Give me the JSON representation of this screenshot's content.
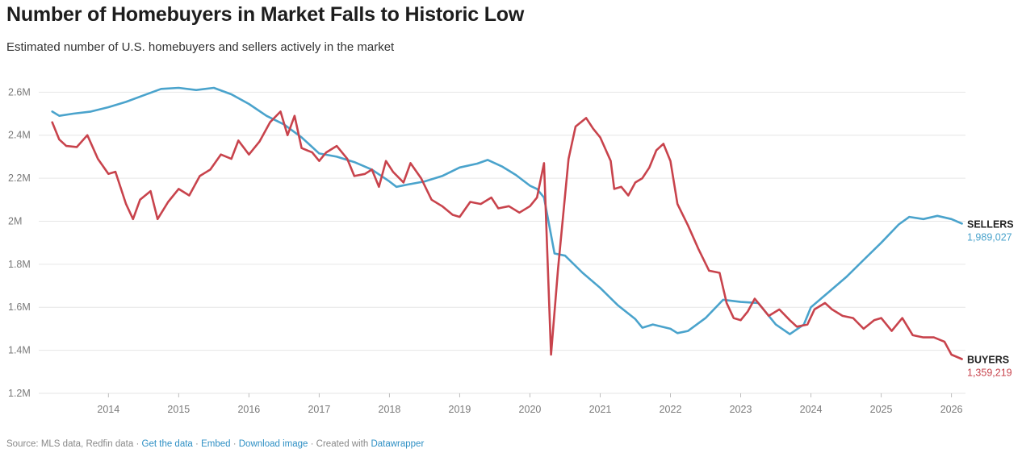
{
  "header": {
    "title": "Number of Homebuyers in Market Falls to Historic Low",
    "subtitle": "Estimated number of U.S. homebuyers and sellers actively in the market"
  },
  "footer": {
    "source": "Source: MLS data, Redfin data",
    "sep": "·",
    "get_data": "Get the data",
    "embed": "Embed",
    "download": "Download image",
    "created_with": "Created with",
    "datawrapper": "Datawrapper"
  },
  "colors": {
    "sellers": "#4aa3cc",
    "buyers": "#c8434c",
    "grid": "#e6e6e6",
    "link": "#2d8fc4"
  },
  "chart_data": {
    "type": "line",
    "x_unit": "year",
    "xlim": [
      2013.1,
      2026.2
    ],
    "ylim": [
      1200000,
      2650000
    ],
    "y_ticks": [
      1200000,
      1400000,
      1600000,
      1800000,
      2000000,
      2200000,
      2400000,
      2600000
    ],
    "y_tick_labels": [
      "1.2M",
      "1.4M",
      "1.6M",
      "1.8M",
      "2M",
      "2.2M",
      "2.4M",
      "2.6M"
    ],
    "x_ticks": [
      2014,
      2015,
      2016,
      2017,
      2018,
      2019,
      2020,
      2021,
      2022,
      2023,
      2024,
      2025,
      2026
    ],
    "x_tick_labels": [
      "2014",
      "2015",
      "2016",
      "2017",
      "2018",
      "2019",
      "2020",
      "2021",
      "2022",
      "2023",
      "2024",
      "2025",
      "2026"
    ],
    "grid": true,
    "series": [
      {
        "name": "SELLERS",
        "end_label": "1,989,027",
        "points": [
          [
            2013.2,
            2510000
          ],
          [
            2013.3,
            2490000
          ],
          [
            2013.5,
            2500000
          ],
          [
            2013.75,
            2510000
          ],
          [
            2014.0,
            2530000
          ],
          [
            2014.25,
            2555000
          ],
          [
            2014.5,
            2585000
          ],
          [
            2014.75,
            2615000
          ],
          [
            2015.0,
            2620000
          ],
          [
            2015.25,
            2610000
          ],
          [
            2015.5,
            2620000
          ],
          [
            2015.75,
            2590000
          ],
          [
            2016.0,
            2545000
          ],
          [
            2016.25,
            2490000
          ],
          [
            2016.5,
            2450000
          ],
          [
            2016.75,
            2390000
          ],
          [
            2017.0,
            2315000
          ],
          [
            2017.25,
            2300000
          ],
          [
            2017.5,
            2275000
          ],
          [
            2017.75,
            2240000
          ],
          [
            2018.0,
            2185000
          ],
          [
            2018.1,
            2160000
          ],
          [
            2018.25,
            2170000
          ],
          [
            2018.5,
            2185000
          ],
          [
            2018.75,
            2210000
          ],
          [
            2019.0,
            2250000
          ],
          [
            2019.25,
            2268000
          ],
          [
            2019.4,
            2285000
          ],
          [
            2019.6,
            2255000
          ],
          [
            2019.8,
            2215000
          ],
          [
            2020.0,
            2165000
          ],
          [
            2020.1,
            2150000
          ],
          [
            2020.2,
            2110000
          ],
          [
            2020.35,
            1850000
          ],
          [
            2020.5,
            1840000
          ],
          [
            2020.75,
            1760000
          ],
          [
            2021.0,
            1690000
          ],
          [
            2021.25,
            1610000
          ],
          [
            2021.5,
            1545000
          ],
          [
            2021.6,
            1505000
          ],
          [
            2021.75,
            1520000
          ],
          [
            2022.0,
            1500000
          ],
          [
            2022.1,
            1480000
          ],
          [
            2022.25,
            1490000
          ],
          [
            2022.5,
            1550000
          ],
          [
            2022.75,
            1635000
          ],
          [
            2023.0,
            1625000
          ],
          [
            2023.25,
            1620000
          ],
          [
            2023.5,
            1520000
          ],
          [
            2023.7,
            1475000
          ],
          [
            2023.9,
            1520000
          ],
          [
            2024.0,
            1600000
          ],
          [
            2024.25,
            1670000
          ],
          [
            2024.5,
            1740000
          ],
          [
            2024.75,
            1820000
          ],
          [
            2025.0,
            1900000
          ],
          [
            2025.25,
            1985000
          ],
          [
            2025.4,
            2020000
          ],
          [
            2025.6,
            2010000
          ],
          [
            2025.8,
            2025000
          ],
          [
            2026.0,
            2010000
          ],
          [
            2026.15,
            1989027
          ]
        ]
      },
      {
        "name": "BUYERS",
        "end_label": "1,359,219",
        "points": [
          [
            2013.2,
            2460000
          ],
          [
            2013.3,
            2380000
          ],
          [
            2013.4,
            2350000
          ],
          [
            2013.55,
            2345000
          ],
          [
            2013.7,
            2400000
          ],
          [
            2013.85,
            2290000
          ],
          [
            2014.0,
            2220000
          ],
          [
            2014.1,
            2230000
          ],
          [
            2014.25,
            2080000
          ],
          [
            2014.35,
            2010000
          ],
          [
            2014.45,
            2100000
          ],
          [
            2014.6,
            2140000
          ],
          [
            2014.7,
            2010000
          ],
          [
            2014.85,
            2090000
          ],
          [
            2015.0,
            2150000
          ],
          [
            2015.15,
            2120000
          ],
          [
            2015.3,
            2210000
          ],
          [
            2015.45,
            2240000
          ],
          [
            2015.6,
            2310000
          ],
          [
            2015.75,
            2290000
          ],
          [
            2015.85,
            2375000
          ],
          [
            2016.0,
            2310000
          ],
          [
            2016.15,
            2370000
          ],
          [
            2016.3,
            2460000
          ],
          [
            2016.45,
            2510000
          ],
          [
            2016.55,
            2400000
          ],
          [
            2016.65,
            2490000
          ],
          [
            2016.75,
            2340000
          ],
          [
            2016.9,
            2320000
          ],
          [
            2017.0,
            2280000
          ],
          [
            2017.1,
            2320000
          ],
          [
            2017.25,
            2350000
          ],
          [
            2017.4,
            2290000
          ],
          [
            2017.5,
            2210000
          ],
          [
            2017.65,
            2220000
          ],
          [
            2017.75,
            2240000
          ],
          [
            2017.85,
            2160000
          ],
          [
            2017.95,
            2280000
          ],
          [
            2018.05,
            2230000
          ],
          [
            2018.2,
            2180000
          ],
          [
            2018.3,
            2270000
          ],
          [
            2018.45,
            2200000
          ],
          [
            2018.6,
            2100000
          ],
          [
            2018.75,
            2070000
          ],
          [
            2018.9,
            2030000
          ],
          [
            2019.0,
            2020000
          ],
          [
            2019.15,
            2090000
          ],
          [
            2019.3,
            2080000
          ],
          [
            2019.45,
            2110000
          ],
          [
            2019.55,
            2060000
          ],
          [
            2019.7,
            2070000
          ],
          [
            2019.85,
            2040000
          ],
          [
            2020.0,
            2070000
          ],
          [
            2020.1,
            2110000
          ],
          [
            2020.2,
            2270000
          ],
          [
            2020.3,
            1380000
          ],
          [
            2020.4,
            1780000
          ],
          [
            2020.55,
            2290000
          ],
          [
            2020.65,
            2440000
          ],
          [
            2020.8,
            2480000
          ],
          [
            2020.9,
            2430000
          ],
          [
            2021.0,
            2390000
          ],
          [
            2021.15,
            2280000
          ],
          [
            2021.2,
            2150000
          ],
          [
            2021.3,
            2160000
          ],
          [
            2021.4,
            2120000
          ],
          [
            2021.5,
            2180000
          ],
          [
            2021.6,
            2200000
          ],
          [
            2021.7,
            2250000
          ],
          [
            2021.8,
            2330000
          ],
          [
            2021.9,
            2360000
          ],
          [
            2022.0,
            2280000
          ],
          [
            2022.1,
            2080000
          ],
          [
            2022.25,
            1980000
          ],
          [
            2022.4,
            1870000
          ],
          [
            2022.55,
            1770000
          ],
          [
            2022.7,
            1760000
          ],
          [
            2022.8,
            1620000
          ],
          [
            2022.9,
            1550000
          ],
          [
            2023.0,
            1540000
          ],
          [
            2023.1,
            1580000
          ],
          [
            2023.2,
            1640000
          ],
          [
            2023.3,
            1600000
          ],
          [
            2023.4,
            1560000
          ],
          [
            2023.55,
            1590000
          ],
          [
            2023.7,
            1540000
          ],
          [
            2023.8,
            1510000
          ],
          [
            2023.95,
            1520000
          ],
          [
            2024.05,
            1590000
          ],
          [
            2024.2,
            1620000
          ],
          [
            2024.3,
            1590000
          ],
          [
            2024.45,
            1560000
          ],
          [
            2024.6,
            1550000
          ],
          [
            2024.75,
            1500000
          ],
          [
            2024.9,
            1540000
          ],
          [
            2025.0,
            1550000
          ],
          [
            2025.15,
            1490000
          ],
          [
            2025.3,
            1550000
          ],
          [
            2025.45,
            1470000
          ],
          [
            2025.6,
            1460000
          ],
          [
            2025.75,
            1460000
          ],
          [
            2025.9,
            1440000
          ],
          [
            2026.0,
            1380000
          ],
          [
            2026.15,
            1359219
          ]
        ]
      }
    ]
  }
}
